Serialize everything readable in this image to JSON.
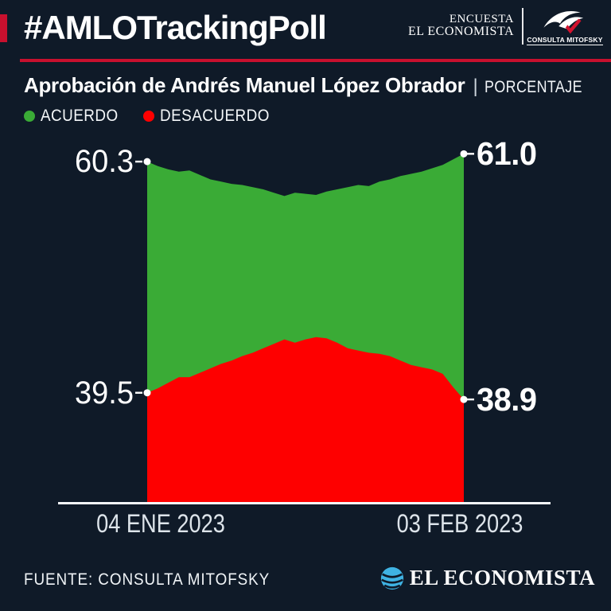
{
  "header": {
    "hashtag_title": "#AMLOTrackingPoll",
    "brand_top": "ENCUESTA",
    "brand_bottom": "EL ECONOMISTA",
    "partner_name": "CONSULTA MITOFSKY",
    "accent_color": "#c8102e"
  },
  "subtitle": {
    "title": "Aprobación de Andrés Manuel López Obrador",
    "separator": "|",
    "unit_label": "PORCENTAJE"
  },
  "legend": [
    {
      "label": "ACUERDO",
      "color": "#3aab36"
    },
    {
      "label": "DESACUERDO",
      "color": "#fe0000"
    }
  ],
  "chart_data": {
    "type": "area",
    "title": "Aprobación de Andrés Manuel López Obrador (porcentaje)",
    "x_start_label": "04 ENE 2023",
    "x_end_label": "03 FEB 2023",
    "ylim": [
      29.6,
      63
    ],
    "grid": false,
    "marker_color": "#ffffff",
    "series": [
      {
        "name": "ACUERDO",
        "color": "#3aab36",
        "start_label": "60.3",
        "end_label": "61.0",
        "values": [
          60.3,
          59.9,
          59.6,
          59.4,
          59.5,
          59.1,
          58.7,
          58.5,
          58.3,
          58.2,
          58.0,
          57.8,
          57.5,
          57.2,
          57.5,
          57.4,
          57.3,
          57.6,
          57.8,
          58.0,
          58.2,
          58.1,
          58.5,
          58.7,
          59.0,
          59.2,
          59.4,
          59.7,
          60.0,
          60.5,
          61.0
        ]
      },
      {
        "name": "DESACUERDO",
        "color": "#fe0000",
        "start_label": "39.5",
        "end_label": "38.9",
        "values": [
          39.5,
          39.9,
          40.4,
          40.9,
          40.9,
          41.3,
          41.7,
          42.1,
          42.4,
          42.8,
          43.1,
          43.5,
          43.9,
          44.3,
          44.0,
          44.3,
          44.5,
          44.4,
          44.0,
          43.5,
          43.3,
          43.1,
          43.0,
          42.8,
          42.4,
          42.0,
          41.8,
          41.6,
          41.2,
          40.0,
          38.9
        ]
      }
    ]
  },
  "footer": {
    "source": "FUENTE: CONSULTA MITOFSKY",
    "brand": "EL ECONOMISTA"
  }
}
